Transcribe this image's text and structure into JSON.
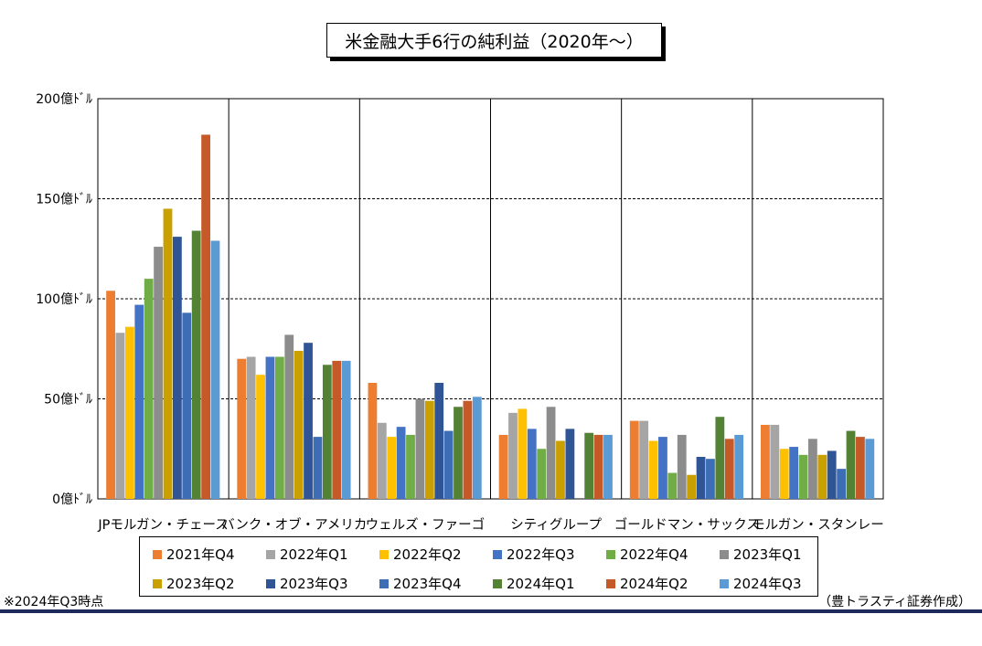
{
  "chart_data": {
    "type": "bar",
    "title": "米金融大手6行の純利益（2020年～）",
    "categories": [
      "JPモルガン・チェース",
      "バンク・オブ・アメリカ",
      "ウェルズ・ファーゴ",
      "シティグループ",
      "ゴールドマン・サックス",
      "モルガン・スタンレー"
    ],
    "ylim": [
      0,
      200
    ],
    "yticks": [
      0,
      50,
      100,
      150,
      200
    ],
    "ytick_labels": [
      "0億ﾄﾞﾙ",
      "50億ﾄﾞﾙ",
      "100億ﾄﾞﾙ",
      "150億ﾄﾞﾙ",
      "200億ﾄﾞﾙ"
    ],
    "grid": true,
    "legend_position": "bottom",
    "series": [
      {
        "name": "2021年Q4",
        "color": "#ED7D31",
        "values": [
          104,
          70,
          58,
          32,
          39,
          37
        ]
      },
      {
        "name": "2022年Q1",
        "color": "#A5A5A5",
        "values": [
          83,
          71,
          38,
          43,
          39,
          37
        ]
      },
      {
        "name": "2022年Q2",
        "color": "#FFC000",
        "values": [
          86,
          62,
          31,
          45,
          29,
          25
        ]
      },
      {
        "name": "2022年Q3",
        "color": "#4472C4",
        "values": [
          97,
          71,
          36,
          35,
          31,
          26
        ]
      },
      {
        "name": "2022年Q4",
        "color": "#70AD47",
        "values": [
          110,
          71,
          32,
          25,
          13,
          22
        ]
      },
      {
        "name": "2023年Q1",
        "color": "#8C8C8C",
        "values": [
          126,
          82,
          50,
          46,
          32,
          30
        ]
      },
      {
        "name": "2023年Q2",
        "color": "#C9A000",
        "values": [
          145,
          74,
          49,
          29,
          12,
          22
        ]
      },
      {
        "name": "2023年Q3",
        "color": "#2F5597",
        "values": [
          131,
          78,
          58,
          35,
          21,
          24
        ]
      },
      {
        "name": "2023年Q4",
        "color": "#3D6DB4",
        "values": [
          93,
          31,
          34,
          0,
          20,
          15
        ]
      },
      {
        "name": "2024年Q1",
        "color": "#548235",
        "values": [
          134,
          67,
          46,
          33,
          41,
          34
        ]
      },
      {
        "name": "2024年Q2",
        "color": "#C55A28",
        "values": [
          182,
          69,
          49,
          32,
          30,
          31
        ]
      },
      {
        "name": "2024年Q3",
        "color": "#5B9BD5",
        "values": [
          129,
          69,
          51,
          32,
          32,
          30
        ]
      }
    ]
  },
  "notes": {
    "left": "※2024年Q3時点",
    "right": "（豊トラスティ証券作成）"
  }
}
